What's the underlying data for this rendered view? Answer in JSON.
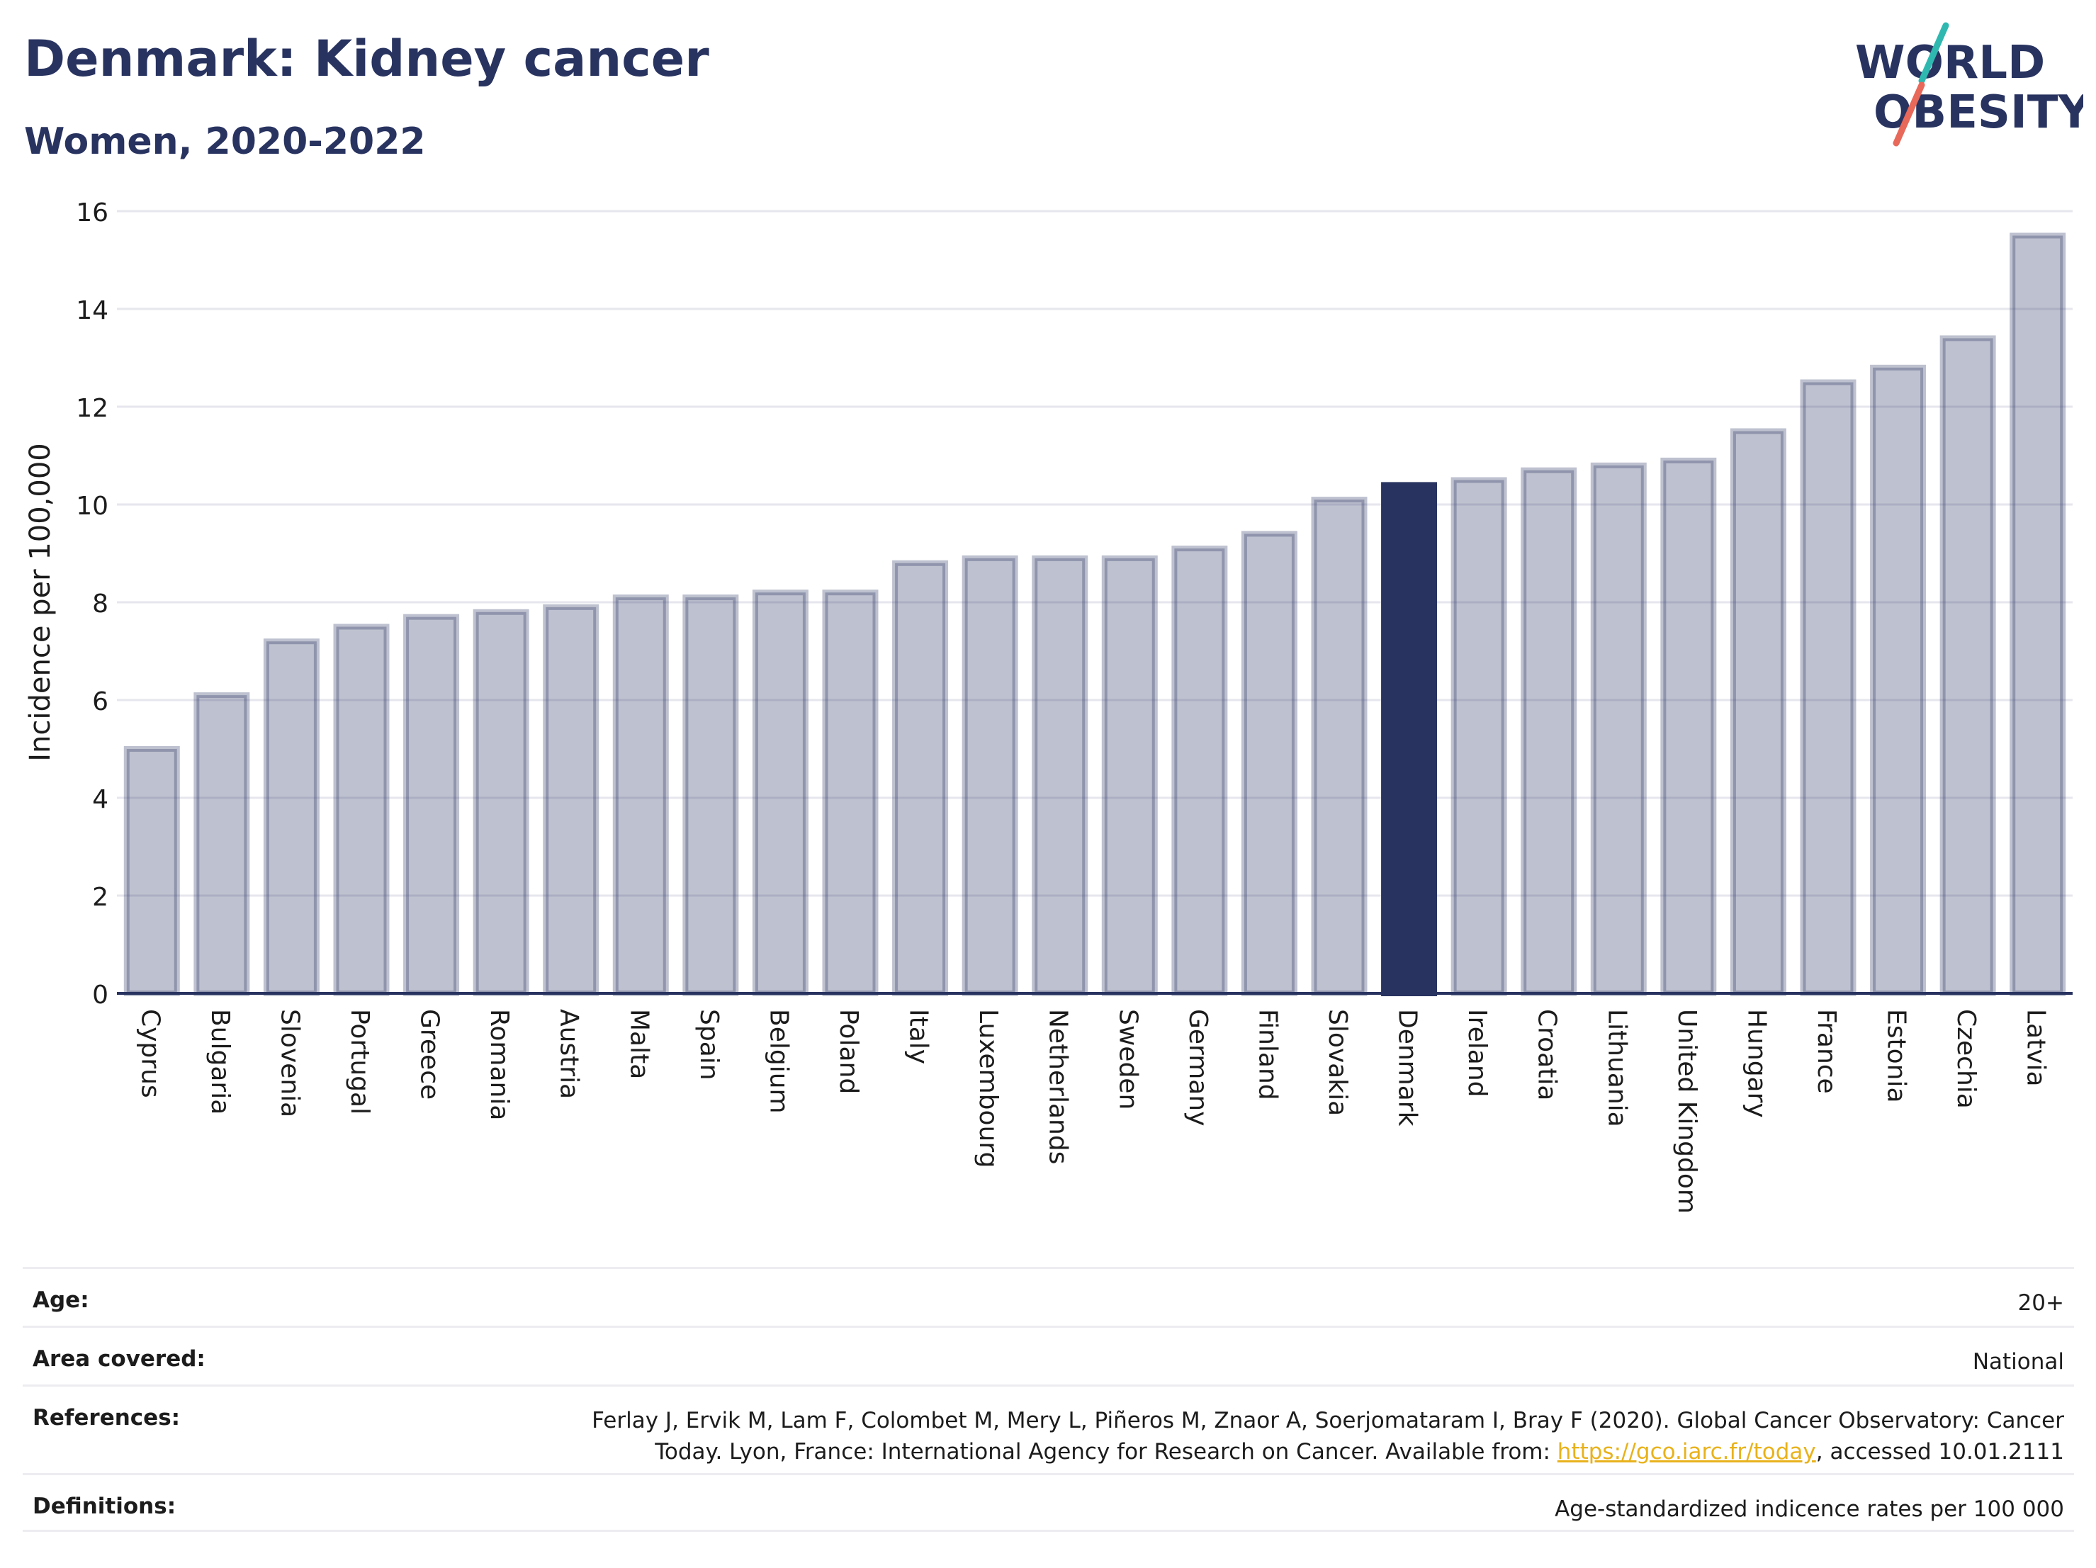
{
  "header": {
    "title": "Denmark: Kidney cancer",
    "subtitle": "Women, 2020-2022"
  },
  "logo": {
    "line1": "WORLD",
    "line2": "OBESITY",
    "colors": {
      "text": "#283360",
      "slash_top": "#2fb8b0",
      "slash_bottom": "#e8685a"
    }
  },
  "colors": {
    "bar_default": "#283360",
    "bar_default_opacity": 0.3,
    "bar_highlight": "#283360",
    "grid": "#e6e6ee",
    "axis": "#283360"
  },
  "chart_data": {
    "type": "bar",
    "ylabel": "Incidence per 100,000",
    "ylim": [
      0,
      16
    ],
    "yticks": [
      0,
      2,
      4,
      6,
      8,
      10,
      12,
      14,
      16
    ],
    "grid": true,
    "highlight": "Denmark",
    "categories": [
      "Cyprus",
      "Bulgaria",
      "Slovenia",
      "Portugal",
      "Greece",
      "Romania",
      "Austria",
      "Malta",
      "Spain",
      "Belgium",
      "Poland",
      "Italy",
      "Luxembourg",
      "Netherlands",
      "Sweden",
      "Germany",
      "Finland",
      "Slovakia",
      "Denmark",
      "Ireland",
      "Croatia",
      "Lithuania",
      "United Kingdom",
      "Hungary",
      "France",
      "Estonia",
      "Czechia",
      "Latvia"
    ],
    "values": [
      5.0,
      6.1,
      7.2,
      7.5,
      7.7,
      7.8,
      7.9,
      8.1,
      8.1,
      8.2,
      8.2,
      8.8,
      8.9,
      8.9,
      8.9,
      9.1,
      9.4,
      10.1,
      10.4,
      10.5,
      10.7,
      10.8,
      10.9,
      11.5,
      12.5,
      12.8,
      13.4,
      15.5
    ]
  },
  "info_table": {
    "age": {
      "label": "Age:",
      "value": "20+"
    },
    "area": {
      "label": "Area covered:",
      "value": "National"
    },
    "references": {
      "label": "References:",
      "text_line1": "Ferlay J, Ervik M, Lam F, Colombet M, Mery L, Piñeros M, Znaor A, Soerjomataram I, Bray F (2020). Global Cancer Observatory: Cancer",
      "text_line2_before": "Today. Lyon, France: International Agency for Research on Cancer. Available from: ",
      "link": "https://gco.iarc.fr/today",
      "text_line2_after": ", accessed 10.01.2111"
    },
    "definitions": {
      "label": "Definitions:",
      "value": "Age-standardized indicence rates per 100 000"
    }
  }
}
